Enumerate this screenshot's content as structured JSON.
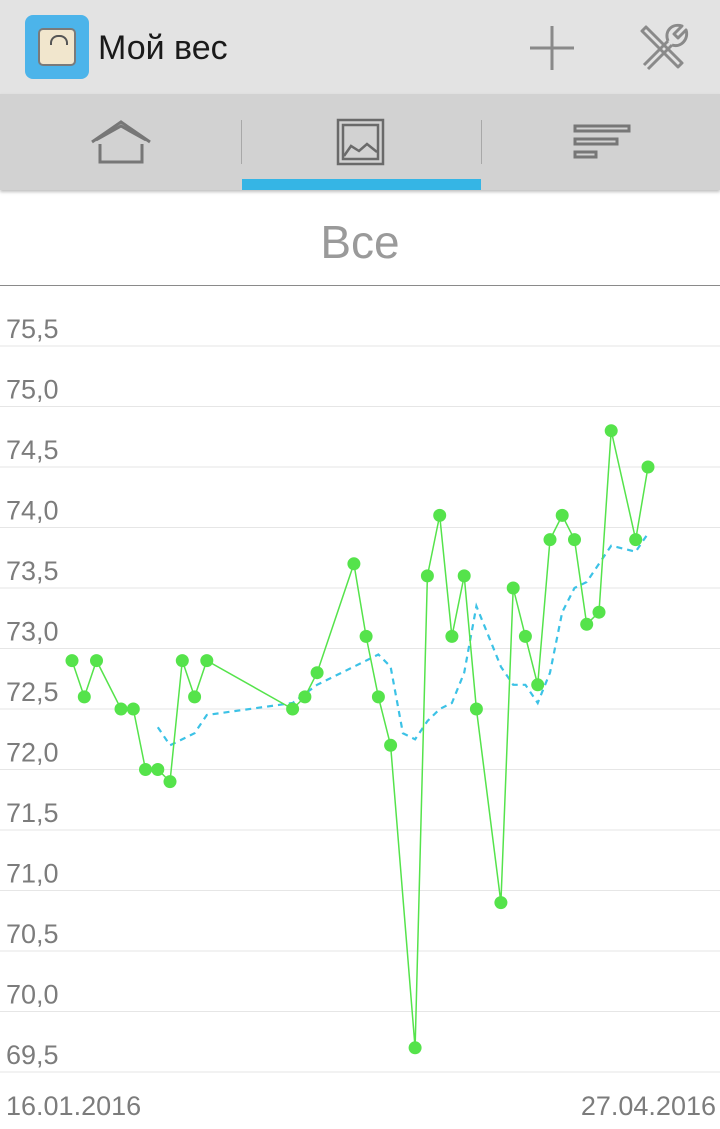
{
  "app": {
    "title": "Мой вес"
  },
  "actions": [
    {
      "name": "add-button",
      "icon": "plus-icon"
    },
    {
      "name": "settings-button",
      "icon": "tools-icon"
    }
  ],
  "tabs": [
    {
      "name": "tab-home",
      "icon": "home-icon",
      "selected": false
    },
    {
      "name": "tab-chart",
      "icon": "image-icon",
      "selected": true
    },
    {
      "name": "tab-list",
      "icon": "list-icon",
      "selected": false
    }
  ],
  "colors": {
    "accent": "#35b5e5",
    "weight_series": "#55e34b",
    "trend_series": "#3cc2e6"
  },
  "chart_data": {
    "type": "line",
    "title": "Все",
    "xlabel": "",
    "ylabel": "",
    "x_start_label": "16.01.2016",
    "x_end_label": "27.04.2016",
    "ylim": [
      69.5,
      75.5
    ],
    "yticks": [
      "69,5",
      "70,0",
      "70,5",
      "71,0",
      "71,5",
      "72,0",
      "72,5",
      "73,0",
      "73,5",
      "74,0",
      "74,5",
      "75,0",
      "75,5"
    ],
    "grid": true,
    "legend": "none",
    "series": [
      {
        "style": "solid-markers",
        "values": [
          {
            "x": "2016-01-16",
            "y": 72.9
          },
          {
            "x": "2016-01-17",
            "y": 72.6
          },
          {
            "x": "2016-01-18",
            "y": 72.9
          },
          {
            "x": "2016-01-20",
            "y": 72.5
          },
          {
            "x": "2016-01-21",
            "y": 72.5
          },
          {
            "x": "2016-01-22",
            "y": 72.0
          },
          {
            "x": "2016-01-23",
            "y": 72.0
          },
          {
            "x": "2016-01-24",
            "y": 71.9
          },
          {
            "x": "2016-01-25",
            "y": 72.9
          },
          {
            "x": "2016-01-26",
            "y": 72.6
          },
          {
            "x": "2016-01-27",
            "y": 72.9
          },
          {
            "x": "2016-02-03",
            "y": 72.5
          },
          {
            "x": "2016-02-04",
            "y": 72.6
          },
          {
            "x": "2016-02-05",
            "y": 72.8
          },
          {
            "x": "2016-02-08",
            "y": 73.7
          },
          {
            "x": "2016-02-09",
            "y": 73.1
          },
          {
            "x": "2016-02-10",
            "y": 72.6
          },
          {
            "x": "2016-02-11",
            "y": 72.2
          },
          {
            "x": "2016-02-13",
            "y": 69.7
          },
          {
            "x": "2016-02-14",
            "y": 73.6
          },
          {
            "x": "2016-02-15",
            "y": 74.1
          },
          {
            "x": "2016-02-16",
            "y": 73.1
          },
          {
            "x": "2016-02-17",
            "y": 73.6
          },
          {
            "x": "2016-02-18",
            "y": 72.5
          },
          {
            "x": "2016-02-20",
            "y": 70.9
          },
          {
            "x": "2016-02-21",
            "y": 73.5
          },
          {
            "x": "2016-02-22",
            "y": 73.1
          },
          {
            "x": "2016-02-23",
            "y": 72.7
          },
          {
            "x": "2016-02-24",
            "y": 73.9
          },
          {
            "x": "2016-02-25",
            "y": 74.1
          },
          {
            "x": "2016-02-26",
            "y": 73.9
          },
          {
            "x": "2016-02-27",
            "y": 73.2
          },
          {
            "x": "2016-02-28",
            "y": 73.3
          },
          {
            "x": "2016-02-29",
            "y": 74.8
          },
          {
            "x": "2016-03-02",
            "y": 73.9
          },
          {
            "x": "2016-03-03",
            "y": 74.5
          }
        ]
      },
      {
        "style": "dashed",
        "values": [
          {
            "x": "2016-01-23",
            "y": 72.35
          },
          {
            "x": "2016-01-24",
            "y": 72.2
          },
          {
            "x": "2016-01-25",
            "y": 72.25
          },
          {
            "x": "2016-01-26",
            "y": 72.3
          },
          {
            "x": "2016-01-27",
            "y": 72.45
          },
          {
            "x": "2016-02-03",
            "y": 72.55
          },
          {
            "x": "2016-02-05",
            "y": 72.7
          },
          {
            "x": "2016-02-08",
            "y": 72.85
          },
          {
            "x": "2016-02-10",
            "y": 72.95
          },
          {
            "x": "2016-02-11",
            "y": 72.85
          },
          {
            "x": "2016-02-12",
            "y": 72.3
          },
          {
            "x": "2016-02-13",
            "y": 72.25
          },
          {
            "x": "2016-02-14",
            "y": 72.4
          },
          {
            "x": "2016-02-15",
            "y": 72.5
          },
          {
            "x": "2016-02-16",
            "y": 72.55
          },
          {
            "x": "2016-02-17",
            "y": 72.8
          },
          {
            "x": "2016-02-18",
            "y": 73.35
          },
          {
            "x": "2016-02-19",
            "y": 73.1
          },
          {
            "x": "2016-02-20",
            "y": 72.85
          },
          {
            "x": "2016-02-21",
            "y": 72.7
          },
          {
            "x": "2016-02-22",
            "y": 72.7
          },
          {
            "x": "2016-02-23",
            "y": 72.55
          },
          {
            "x": "2016-02-24",
            "y": 72.8
          },
          {
            "x": "2016-02-25",
            "y": 73.3
          },
          {
            "x": "2016-02-26",
            "y": 73.5
          },
          {
            "x": "2016-02-27",
            "y": 73.55
          },
          {
            "x": "2016-02-28",
            "y": 73.7
          },
          {
            "x": "2016-02-29",
            "y": 73.85
          },
          {
            "x": "2016-03-02",
            "y": 73.8
          },
          {
            "x": "2016-03-03",
            "y": 73.95
          }
        ]
      }
    ]
  }
}
